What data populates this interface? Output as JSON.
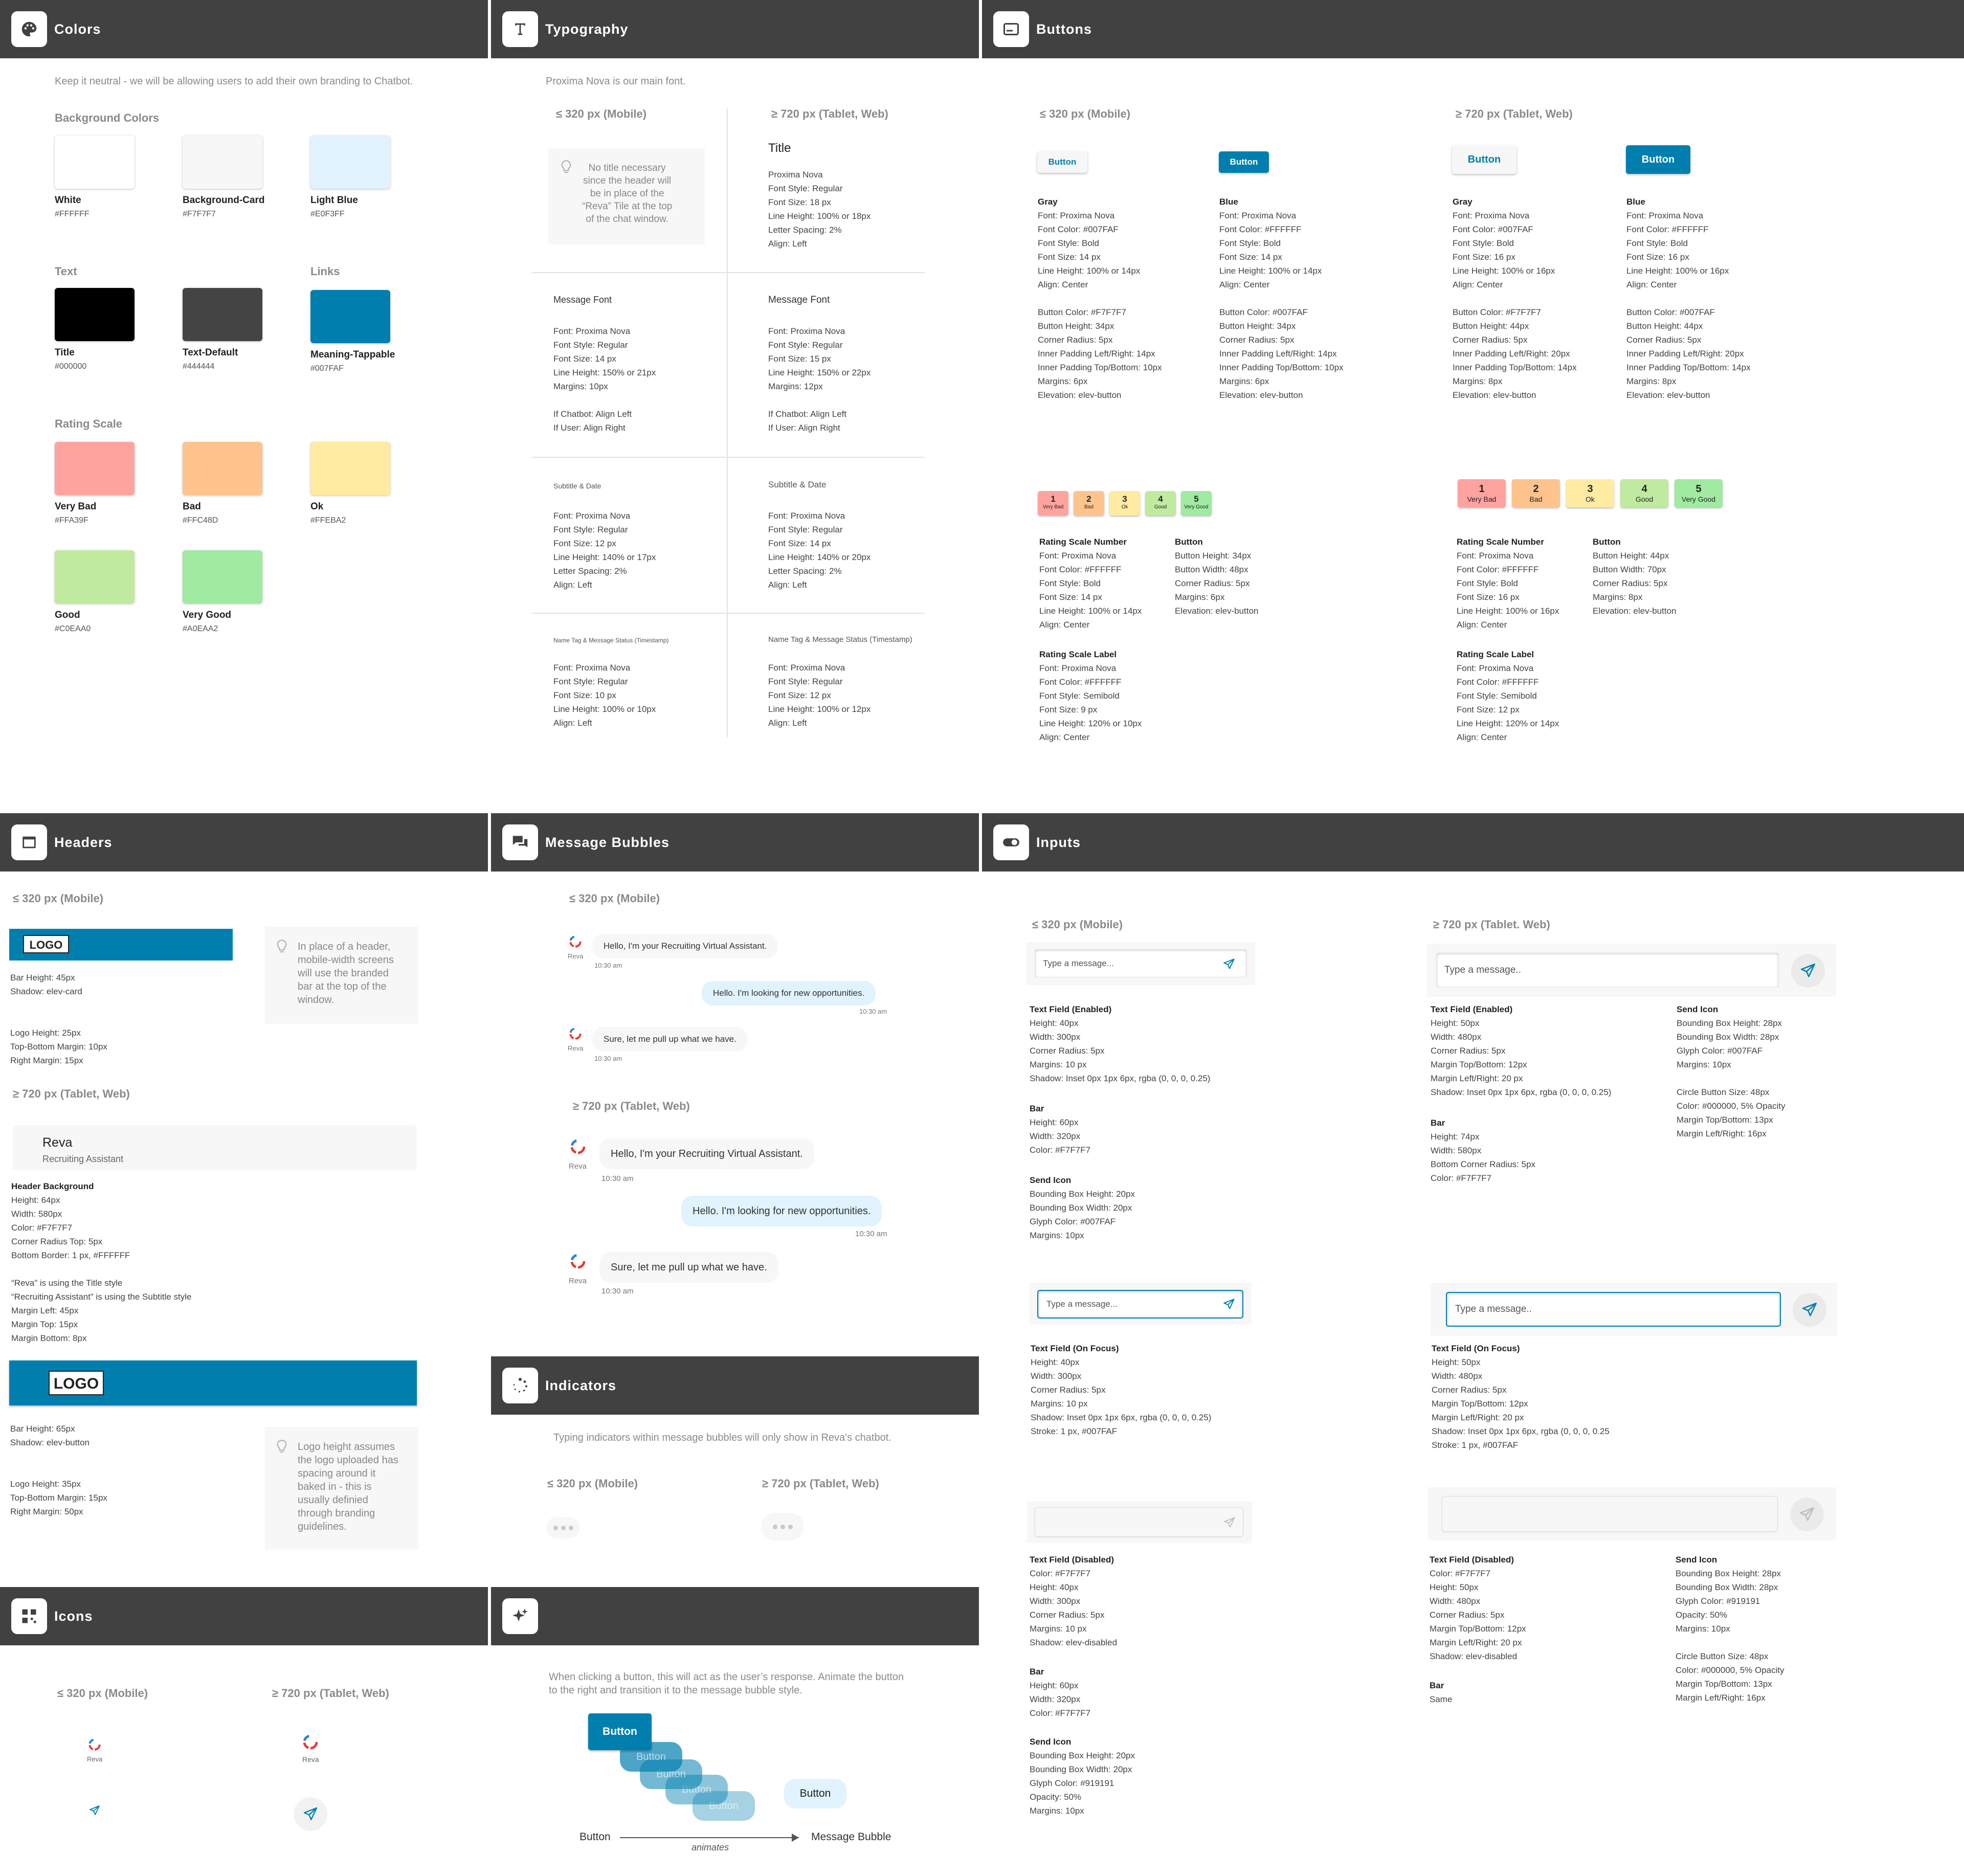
{
  "colors": {
    "title": "Colors",
    "intro": "Keep it neutral - we will be allowing users to add their own branding to Chatbot.",
    "bg_label": "Background Colors",
    "text_label": "Text",
    "links_label": "Links",
    "rating_label": "Rating Scale",
    "swatches": [
      {
        "name": "White",
        "hex": "#FFFFFF"
      },
      {
        "name": "Background-Card",
        "hex": "#F7F7F7"
      },
      {
        "name": "Light Blue",
        "hex": "#E0F3FF"
      },
      {
        "name": "Title",
        "hex": "#000000"
      },
      {
        "name": "Text-Default",
        "hex": "#444444"
      },
      {
        "name": "Meaning-Tappable",
        "hex": "#007FAF"
      },
      {
        "name": "Very Bad",
        "hex": "#FFA39F"
      },
      {
        "name": "Bad",
        "hex": "#FFC48D"
      },
      {
        "name": "Ok",
        "hex": "#FFEBA2"
      },
      {
        "name": "Good",
        "hex": "#C0EAA0"
      },
      {
        "name": "Very Good",
        "hex": "#A0EAA2"
      }
    ]
  },
  "typography": {
    "title": "Typography",
    "intro": "Proxima Nova is our main font.",
    "mobile": "≤ 320 px (Mobile)",
    "web": "≥ 720 px (Tablet, Web)",
    "tip": "No title necessary\nsince the header will\nbe in place of the\n“Reva” Tile at the top\nof the chat window.",
    "title_web_heading": "Title",
    "title_web_spec": "Proxima Nova\nFont Style: Regular\nFont Size: 18 px\nLine Height: 100% or 18px\nLetter Spacing: 2%\nAlign: Left",
    "msg_heading": "Message Font",
    "msg_mobile": "Font: Proxima Nova\nFont Style: Regular\nFont Size: 14 px\nLine Height: 150% or 21px\nMargins: 10px\n\nIf Chatbot: Align Left\nIf User: Align Right",
    "msg_web": "Font: Proxima Nova\nFont Style: Regular\nFont Size: 15 px\nLine Height: 150% or 22px\nMargins: 12px\n\nIf Chatbot: Align Left\nIf User: Align Right",
    "sub_heading": "Subtitle & Date",
    "sub_mobile": "Font: Proxima Nova\nFont Style: Regular\nFont Size: 12 px\nLine Height: 140% or 17px\nLetter Spacing: 2%\nAlign: Left",
    "sub_web": "Font: Proxima Nova\nFont Style: Regular\nFont Size: 14 px\nLine Height: 140% or 20px\nLetter Spacing: 2%\nAlign: Left",
    "name_heading": "Name Tag & Message Status (Timestamp)",
    "name_mobile": "Font: Proxima Nova\nFont Style: Regular\nFont Size: 10 px\nLine Height: 100% or 10px\nAlign: Left",
    "name_web": "Font: Proxima Nova\nFont Style: Regular\nFont Size: 12 px\nLine Height: 100% or 12px\nAlign: Left"
  },
  "buttons": {
    "title": "Buttons",
    "mobile": "≤ 320 px (Mobile)",
    "web": "≥ 720 px (Tablet, Web)",
    "button_label": "Button",
    "gray_heading": "Gray",
    "blue_heading": "Blue",
    "gray_mobile": "Font: Proxima Nova\nFont Color: #007FAF\nFont Style: Bold\nFont Size: 14 px\nLine Height: 100% or 14px\nAlign: Center\n\nButton Color: #F7F7F7\nButton Height: 34px\nCorner Radius: 5px\nInner Padding Left/Right: 14px\nInner Padding Top/Bottom: 10px\nMargins: 6px\nElevation: elev-button",
    "blue_mobile": "Font: Proxima Nova\nFont Color: #FFFFFF\nFont Style: Bold\nFont Size: 14 px\nLine Height: 100% or 14px\nAlign: Center\n\nButton Color: #007FAF\nButton Height: 34px\nCorner Radius: 5px\nInner Padding Left/Right: 14px\nInner Padding Top/Bottom: 10px\nMargins: 6px\nElevation: elev-button",
    "gray_web": "Font: Proxima Nova\nFont Color: #007FAF\nFont Style: Bold\nFont Size: 16 px\nLine Height: 100% or 16px\nAlign: Center\n\nButton Color: #F7F7F7\nButton Height: 44px\nCorner Radius: 5px\nInner Padding Left/Right: 20px\nInner Padding Top/Bottom: 14px\nMargins: 8px\nElevation: elev-button",
    "blue_web": "Font: Proxima Nova\nFont Color: #FFFFFF\nFont Style: Bold\nFont Size: 16 px\nLine Height: 100% or 16px\nAlign: Center\n\nButton Color: #007FAF\nButton Height: 44px\nCorner Radius: 5px\nInner Padding Left/Right: 20px\nInner Padding Top/Bottom: 14px\nMargins: 8px\nElevation: elev-button",
    "ratings": [
      {
        "num": "1",
        "label": "Very Bad",
        "color": "#FFA39F"
      },
      {
        "num": "2",
        "label": "Bad",
        "color": "#FFC48D"
      },
      {
        "num": "3",
        "label": "Ok",
        "color": "#FFEBA2"
      },
      {
        "num": "4",
        "label": "Good",
        "color": "#C0EAA0"
      },
      {
        "num": "5",
        "label": "Very Good",
        "color": "#A0EAA2"
      }
    ],
    "rsn_heading": "Rating Scale Number",
    "rsl_heading": "Rating Scale Label",
    "btn_heading": "Button",
    "rsn_mobile": "Font: Proxima Nova\nFont Color: #FFFFFF\nFont Style: Bold\nFont Size: 14 px\nLine Height: 100% or 14px\nAlign: Center",
    "rsl_mobile": "Font: Proxima Nova\nFont Color: #FFFFFF\nFont Style: Semibold\nFont Size: 9 px\nLine Height: 120% or 10px\nAlign: Center",
    "rbtn_mobile": "Button Height: 34px\nButton Width: 48px\nCorner Radius: 5px\nMargins: 6px\nElevation: elev-button",
    "rsn_web": "Font: Proxima Nova\nFont Color: #FFFFFF\nFont Style: Bold\nFont Size: 16 px\nLine Height: 100% or 16px\nAlign: Center",
    "rsl_web": "Font: Proxima Nova\nFont Color: #FFFFFF\nFont Style: Semibold\nFont Size: 12 px\nLine Height: 120% or 14px\nAlign: Center",
    "rbtn_web": "Button Height: 44px\nButton Width: 70px\nCorner Radius: 5px\nMargins: 8px\nElevation: elev-button"
  },
  "headers": {
    "title": "Headers",
    "mobile": "≤ 320 px (Mobile)",
    "web": "≥ 720 px (Tablet, Web)",
    "logo": "LOGO",
    "bar1_spec": "Bar Height: 45px\nShadow: elev-card\n\n\nLogo Height: 25px\nTop-Bottom Margin: 10px\nRight Margin: 15px",
    "tip1": "In place of a header,\nmobile-width screens\nwill use the branded\nbar at the top of the\nwindow.",
    "reva": "Reva",
    "reva_sub": "Recruiting Assistant",
    "hb_heading": "Header Background",
    "hb_spec": "Height: 64px\nWidth: 580px\nColor: #F7F7F7\nCorner Radius Top: 5px\nBottom Border: 1 px, #FFFFFF\n\n“Reva” is using the Title style\n“Recruiting Assistant” is using the Subtitle style\nMargin Left: 45px\nMargin Top: 15px\nMargin Bottom: 8px",
    "bar2_spec": "Bar Height: 65px\nShadow: elev-button\n\n\nLogo Height: 35px\nTop-Bottom Margin: 15px\nRight Margin: 50px",
    "tip2": "Logo height assumes\nthe logo uploaded has\nspacing around it\nbaked in - this is\nusually definied\nthrough branding\nguidelines."
  },
  "bubbles": {
    "title": "Message Bubbles",
    "mobile": "≤ 320 px (Mobile)",
    "web": "≥ 720 px (Tablet, Web)",
    "reva": "Reva",
    "m1": "Hello, I'm your Recruiting Virtual Assistant.",
    "m2": "Hello. I'm looking for new opportunities.",
    "m3": "Sure, let me pull up what we have.",
    "time": "10:30 am"
  },
  "indicators": {
    "title": "Indicators",
    "intro": "Typing indicators within message bubbles will only show in Reva's chatbot.",
    "mobile": "≤ 320 px (Mobile)",
    "web": "≥ 720 px (Tablet, Web)"
  },
  "icons": {
    "title": "Icons",
    "mobile": "≤ 320 px (Mobile)",
    "web": "≥ 720 px (Tablet, Web)",
    "reva": "Reva"
  },
  "animation": {
    "intro": "When clicking a button, this will act as the user’s response. Animate the button\nto the right and transition it to the message bubble style.",
    "button": "Button",
    "from": "Button",
    "to": "Message Bubble",
    "verb": "animates"
  },
  "inputs": {
    "title": "Inputs",
    "mobile": "≤ 320 px (Mobile)",
    "web": "≥ 720 px (Tablet. Web)",
    "placeholder_m": "Type a message...",
    "placeholder_w": "Type a message..",
    "tf_enabled": "Text Field (Enabled)",
    "tf_focus": "Text Field (On Focus)",
    "tf_disabled": "Text Field (Disabled)",
    "bar": "Bar",
    "send_icon": "Send Icon",
    "m_enabled": "Height: 40px\nWidth: 300px\nCorner Radius: 5px\nMargins: 10 px\nShadow: Inset 0px 1px 6px, rgba (0, 0, 0, 0.25)",
    "m_bar": "Height: 60px\nWidth: 320px\nColor: #F7F7F7",
    "m_send": "Bounding Box Height: 20px\nBounding Box Width: 20px\nGlyph Color: #007FAF\nMargins: 10px",
    "w_enabled": "Height: 50px\nWidth: 480px\nCorner Radius: 5px\nMargin Top/Bottom: 12px\nMargin Left/Right: 20 px\nShadow: Inset 0px 1px 6px, rgba (0, 0, 0, 0.25)",
    "w_bar": "Height: 74px\nWidth: 580px\nBottom Corner Radius: 5px\nColor: #F7F7F7",
    "w_send": "Bounding Box Height: 28px\nBounding Box Width: 28px\nGlyph Color: #007FAF\nMargins: 10px\n\nCircle Button Size: 48px\nColor: #000000, 5% Opacity\nMargin Top/Bottom: 13px\nMargin Left/Right: 16px",
    "m_focus": "Height: 40px\nWidth: 300px\nCorner Radius: 5px\nMargins: 10 px\nShadow: Inset 0px 1px 6px, rgba (0, 0, 0, 0.25)\nStroke: 1 px, #007FAF",
    "w_focus": "Height: 50px\nWidth: 480px\nCorner Radius: 5px\nMargin Top/Bottom: 12px\nMargin Left/Right: 20 px\nShadow: Inset 0px 1px 6px, rgba (0, 0, 0, 0.25\nStroke: 1 px, #007FAF",
    "m_disabled": "Color: #F7F7F7\nHeight: 40px\nWidth: 300px\nCorner Radius: 5px\nMargins: 10 px\nShadow: elev-disabled",
    "m_dbar": "Height: 60px\nWidth: 320px\nColor: #F7F7F7",
    "m_dsend": "Bounding Box Height: 20px\nBounding Box Width: 20px\nGlyph Color: #919191\nOpacity: 50%\nMargins: 10px",
    "w_disabled": "Color: #F7F7F7\nHeight: 50px\nWidth: 480px\nCorner Radius: 5px\nMargin Top/Bottom: 12px\nMargin Left/Right: 20 px\nShadow: elev-disabled",
    "w_dbar": "Same",
    "w_dsend": "Bounding Box Height: 28px\nBounding Box Width: 28px\nGlyph Color: #919191\nOpacity: 50%\nMargins: 10px\n\nCircle Button Size: 48px\nColor: #000000, 5% Opacity\nMargin Top/Bottom: 13px\nMargin Left/Right: 16px"
  }
}
